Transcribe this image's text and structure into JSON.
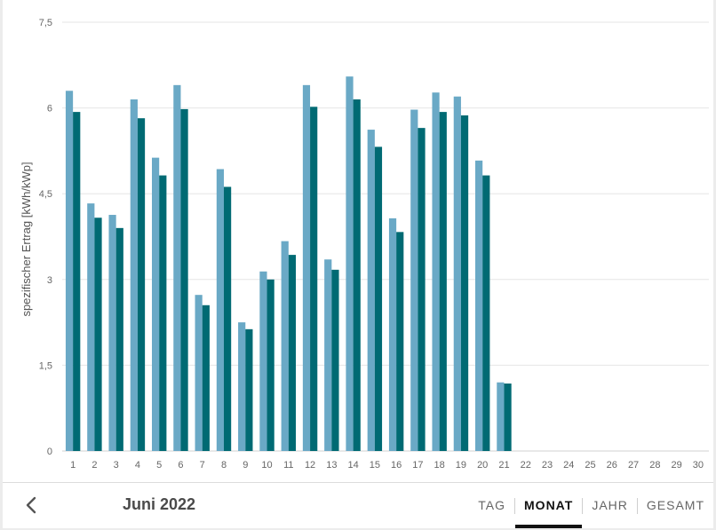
{
  "chart_data": {
    "type": "bar",
    "ylabel": "spezifischer Ertrag [kWh/kWp]",
    "ylim": [
      0,
      7.5
    ],
    "yticks": [
      "0",
      "1,5",
      "3",
      "4,5",
      "6",
      "7,5"
    ],
    "ytick_values": [
      0,
      1.5,
      3,
      4.5,
      6,
      7.5
    ],
    "grid": true,
    "categories": [
      "1",
      "2",
      "3",
      "4",
      "5",
      "6",
      "7",
      "8",
      "9",
      "10",
      "11",
      "12",
      "13",
      "14",
      "15",
      "16",
      "17",
      "18",
      "19",
      "20",
      "21",
      "22",
      "23",
      "24",
      "25",
      "26",
      "27",
      "28",
      "29",
      "30"
    ],
    "series": [
      {
        "color": "#6aa9c6",
        "values": [
          6.3,
          4.33,
          4.13,
          6.15,
          5.13,
          6.4,
          2.73,
          4.93,
          2.25,
          3.14,
          3.67,
          6.4,
          3.35,
          6.55,
          5.62,
          4.07,
          5.97,
          6.27,
          6.2,
          5.08,
          1.2,
          null,
          null,
          null,
          null,
          null,
          null,
          null,
          null,
          null
        ]
      },
      {
        "color": "#006a73",
        "values": [
          5.93,
          4.08,
          3.9,
          5.82,
          4.82,
          5.98,
          2.55,
          4.62,
          2.13,
          3.0,
          3.43,
          6.02,
          3.17,
          6.15,
          5.32,
          3.83,
          5.65,
          5.93,
          5.87,
          4.82,
          1.18,
          null,
          null,
          null,
          null,
          null,
          null,
          null,
          null,
          null
        ]
      }
    ]
  },
  "footer": {
    "back_icon": "chevron-left-icon",
    "period": "Juni 2022",
    "tabs": [
      "TAG",
      "MONAT",
      "JAHR",
      "GESAMT"
    ],
    "active_tab": "MONAT"
  }
}
